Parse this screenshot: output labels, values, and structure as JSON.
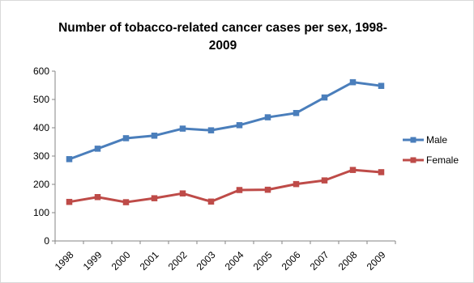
{
  "chart_data": {
    "type": "line",
    "title": "Number of tobacco-related cancer cases per sex, 1998-2009",
    "xlabel": "",
    "ylabel": "",
    "categories": [
      "1998",
      "1999",
      "2000",
      "2001",
      "2002",
      "2003",
      "2004",
      "2005",
      "2006",
      "2007",
      "2008",
      "2009"
    ],
    "ylim": [
      0,
      600
    ],
    "yticks": [
      0,
      100,
      200,
      300,
      400,
      500,
      600
    ],
    "grid": false,
    "legend_position": "right",
    "series": [
      {
        "name": "Male",
        "color": "#4a7ebb",
        "marker": "square",
        "values": [
          289,
          326,
          363,
          372,
          397,
          391,
          409,
          437,
          452,
          507,
          561,
          548
        ]
      },
      {
        "name": "Female",
        "color": "#be4b48",
        "marker": "square",
        "values": [
          138,
          155,
          137,
          151,
          168,
          139,
          180,
          181,
          201,
          214,
          251,
          243
        ]
      }
    ]
  }
}
